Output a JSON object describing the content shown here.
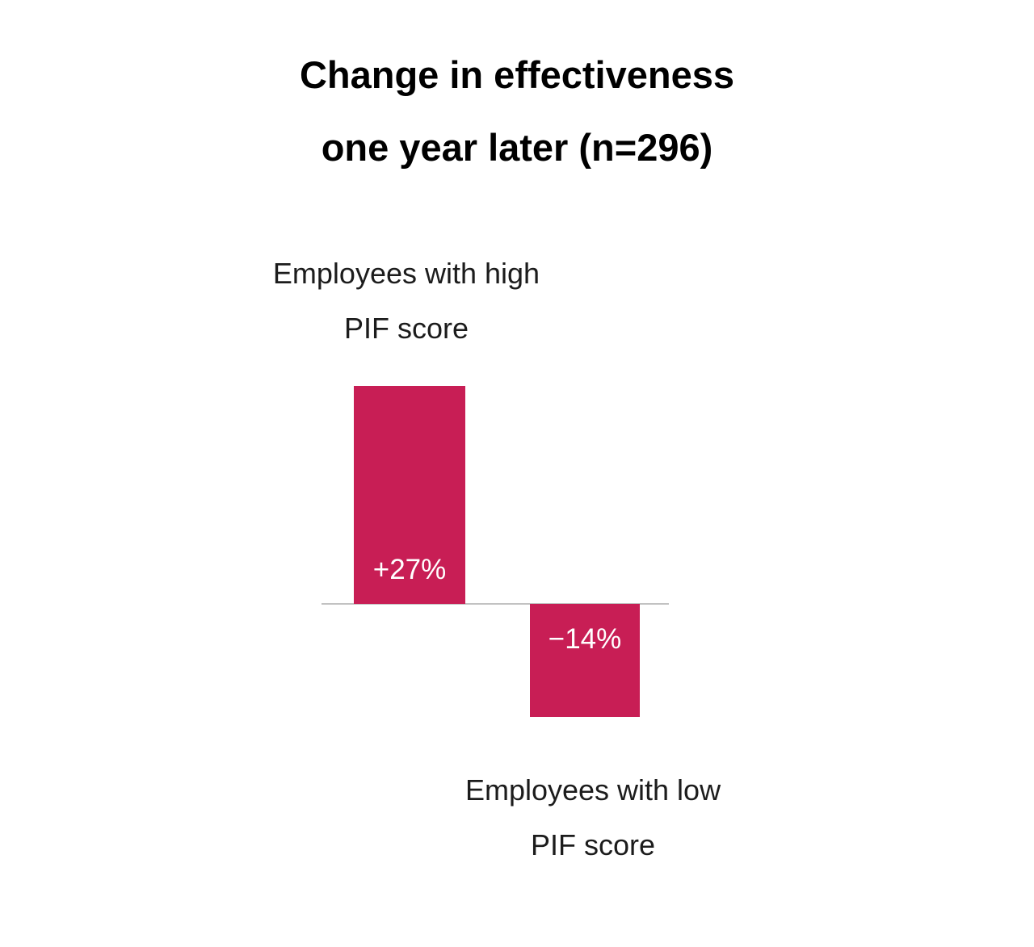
{
  "chart_data": {
    "type": "bar",
    "title": "Change in effectiveness one year later (n=296)",
    "title_line1": "Change in effectiveness",
    "title_line2": "one year later (n=296)",
    "categories": [
      "Employees with high PIF score",
      "Employees with low PIF score"
    ],
    "values": [
      27,
      -14
    ],
    "value_labels": [
      "+27%",
      "−14%"
    ],
    "ylabel": "",
    "xlabel": "",
    "ylim": [
      -20,
      35
    ],
    "grid": false,
    "legend": false,
    "bar_color": "#c81e55",
    "baseline_color": "#c2c2c2",
    "value_label_color": "#ffffff"
  },
  "labels": {
    "high_line1": "Employees with high",
    "high_line2": "PIF score",
    "low_line1": "Employees with low",
    "low_line2": "PIF score"
  }
}
